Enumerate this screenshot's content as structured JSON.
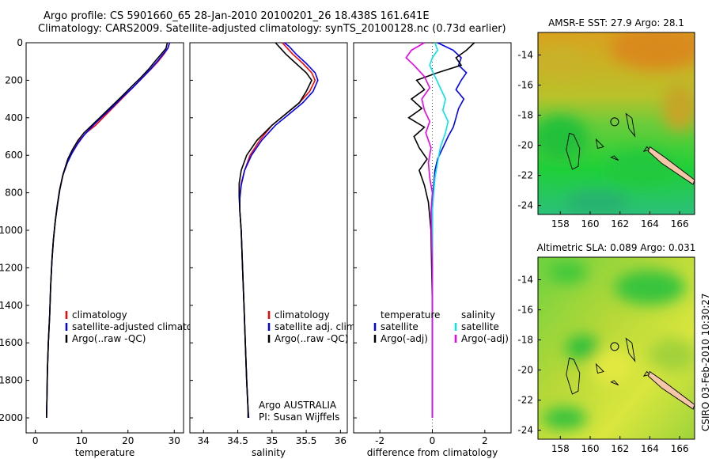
{
  "header": {
    "line1": "Argo profile: CS 5901660_65 28-Jan-2010 20100201_26 18.438S 161.641E",
    "line2": "Climatology: CARS2009. Satellite-adjusted climatology: synTS_20100128.nc (0.73d earlier)"
  },
  "credit": "CSIRO 03-Feb-2010 10:30:27",
  "colors": {
    "climatology": "#ff0000",
    "satellite": "#0000ff",
    "argo": "#000000",
    "sat_salinity": "#00e5ee",
    "argo_salinity": "#ee00ee",
    "island": "#f5c6a8"
  },
  "chart_data": [
    {
      "type": "line",
      "id": "temperature",
      "xlabel": "temperature",
      "ylabel": "",
      "xlim": [
        -2,
        32
      ],
      "ylim": [
        0,
        2080
      ],
      "xticks": [
        "0",
        "10",
        "20",
        "30"
      ],
      "yticks": [
        "0",
        "200",
        "400",
        "600",
        "800",
        "1000",
        "1200",
        "1400",
        "1600",
        "1800",
        "2000"
      ],
      "legend": [
        "climatology",
        "satellite-adjusted climatology",
        "Argo(..raw -QC)"
      ],
      "series": [
        {
          "name": "climatology",
          "color": "#ff0000",
          "x": [
            29.0,
            28.6,
            27.8,
            26.5,
            25.0,
            23.0,
            21.0,
            19.0,
            17.0,
            15.0,
            13.0,
            11.0,
            9.5,
            8.3,
            7.2,
            6.0,
            5.3,
            4.8,
            4.3,
            3.9,
            3.6,
            3.3,
            3.1,
            2.8,
            2.6,
            2.5,
            2.4
          ],
          "y": [
            0,
            30,
            60,
            100,
            140,
            190,
            240,
            290,
            340,
            390,
            440,
            480,
            520,
            570,
            620,
            700,
            780,
            860,
            950,
            1050,
            1150,
            1300,
            1450,
            1600,
            1750,
            1900,
            2000
          ]
        },
        {
          "name": "satellite-adjusted climatology",
          "color": "#0000ff",
          "x": [
            29.0,
            28.6,
            27.6,
            26.3,
            24.9,
            23.0,
            21.0,
            18.8,
            16.8,
            14.6,
            12.5,
            10.6,
            9.1,
            7.9,
            6.9,
            5.9,
            5.2,
            4.7,
            4.3,
            3.9,
            3.6,
            3.3,
            3.1,
            2.8,
            2.6,
            2.5,
            2.4
          ],
          "y": [
            0,
            30,
            60,
            100,
            140,
            190,
            240,
            290,
            340,
            390,
            440,
            490,
            540,
            590,
            640,
            710,
            790,
            870,
            950,
            1050,
            1150,
            1300,
            1450,
            1600,
            1750,
            1900,
            2000
          ]
        },
        {
          "name": "Argo(..raw -QC)",
          "color": "#000000",
          "x": [
            28.5,
            28.2,
            27.2,
            25.8,
            24.5,
            22.6,
            20.5,
            18.5,
            16.4,
            14.3,
            12.2,
            10.5,
            9.2,
            8.0,
            7.0,
            6.0,
            5.3,
            4.8,
            4.3,
            3.9,
            3.6,
            3.3,
            3.1,
            2.8,
            2.6,
            2.5,
            2.4
          ],
          "y": [
            0,
            30,
            60,
            100,
            140,
            190,
            240,
            290,
            340,
            390,
            440,
            480,
            520,
            570,
            620,
            700,
            780,
            860,
            950,
            1050,
            1150,
            1300,
            1450,
            1600,
            1750,
            1900,
            2000
          ]
        }
      ]
    },
    {
      "type": "line",
      "id": "salinity",
      "xlabel": "salinity",
      "ylabel": "",
      "xlim": [
        33.8,
        36.1
      ],
      "ylim": [
        0,
        2080
      ],
      "xticks": [
        "34",
        "34.5",
        "35",
        "35.5",
        "36"
      ],
      "yticks": [],
      "legend": [
        "climatology",
        "satellite adj. clim.",
        "Argo(..raw -QC)"
      ],
      "annotation": [
        "Argo AUSTRALIA",
        "PI: Susan Wijffels"
      ],
      "series": [
        {
          "name": "climatology",
          "color": "#ff0000",
          "x": [
            35.15,
            35.2,
            35.3,
            35.45,
            35.58,
            35.63,
            35.55,
            35.4,
            35.2,
            35.0,
            34.82,
            34.68,
            34.6,
            34.55,
            34.53,
            34.53,
            34.55,
            34.57,
            34.59,
            34.61,
            34.63,
            34.65,
            34.66
          ],
          "y": [
            0,
            20,
            60,
            110,
            160,
            200,
            260,
            320,
            380,
            440,
            520,
            600,
            680,
            750,
            820,
            900,
            1000,
            1200,
            1400,
            1600,
            1800,
            1950,
            2000
          ]
        },
        {
          "name": "satellite adj. clim.",
          "color": "#0000ff",
          "x": [
            35.18,
            35.25,
            35.35,
            35.5,
            35.63,
            35.67,
            35.6,
            35.45,
            35.25,
            35.05,
            34.85,
            34.7,
            34.6,
            34.55,
            34.53,
            34.53,
            34.55,
            34.57,
            34.59,
            34.61,
            34.63,
            34.65,
            34.66
          ],
          "y": [
            0,
            20,
            60,
            110,
            160,
            200,
            260,
            320,
            380,
            440,
            520,
            600,
            680,
            760,
            830,
            900,
            1000,
            1200,
            1400,
            1600,
            1800,
            1950,
            2000
          ]
        },
        {
          "name": "Argo(..raw -QC)",
          "color": "#000000",
          "x": [
            35.05,
            35.1,
            35.2,
            35.35,
            35.5,
            35.58,
            35.5,
            35.4,
            35.2,
            35.0,
            34.78,
            34.63,
            34.55,
            34.52,
            34.52,
            34.53,
            34.55,
            34.57,
            34.59,
            34.61,
            34.63,
            34.65,
            34.65
          ],
          "y": [
            0,
            20,
            60,
            110,
            160,
            200,
            260,
            320,
            380,
            440,
            520,
            600,
            680,
            750,
            820,
            900,
            1000,
            1200,
            1400,
            1600,
            1800,
            1950,
            2000
          ]
        }
      ]
    },
    {
      "type": "line",
      "id": "difference",
      "xlabel": "difference from climatology",
      "ylabel": "",
      "xlim": [
        -3,
        3
      ],
      "ylim": [
        0,
        2080
      ],
      "xticks": [
        "-2",
        "0",
        "2"
      ],
      "yticks": [],
      "legend_temperature": [
        "temperature",
        "satellite",
        "Argo(-adj)"
      ],
      "legend_salinity": [
        "salinity",
        "satellite",
        "Argo(-adj)"
      ],
      "series": [
        {
          "name": "temperature satellite",
          "color": "#0000ff",
          "x": [
            0.2,
            0.8,
            1.1,
            1.0,
            1.3,
            1.1,
            0.9,
            1.2,
            1.0,
            0.9,
            0.8,
            0.6,
            0.4,
            0.2,
            0.1,
            0.05,
            0,
            0,
            0,
            0,
            0
          ],
          "y": [
            0,
            40,
            80,
            120,
            160,
            200,
            250,
            300,
            350,
            400,
            450,
            500,
            560,
            620,
            680,
            760,
            850,
            1000,
            1400,
            1800,
            2000
          ]
        },
        {
          "name": "temperature Argo(-adj)",
          "color": "#000000",
          "x": [
            1.6,
            1.3,
            0.9,
            1.1,
            0.2,
            -0.6,
            -0.3,
            -0.8,
            -0.4,
            -0.9,
            -0.3,
            -0.7,
            -0.5,
            -0.2,
            -0.5,
            -0.3,
            -0.15,
            -0.05,
            0,
            0,
            0
          ],
          "y": [
            0,
            40,
            80,
            120,
            160,
            200,
            250,
            300,
            350,
            400,
            450,
            500,
            560,
            620,
            680,
            760,
            850,
            1000,
            1400,
            1800,
            2000
          ]
        },
        {
          "name": "salinity satellite",
          "color": "#00e5ee",
          "x": [
            0.1,
            0.2,
            0,
            -0.1,
            0.1,
            0.3,
            0.5,
            0.4,
            0.6,
            0.5,
            0.3,
            0.2,
            0.1,
            0.05,
            0,
            0,
            0
          ],
          "y": [
            0,
            40,
            80,
            120,
            180,
            240,
            300,
            360,
            420,
            480,
            560,
            640,
            720,
            800,
            900,
            1200,
            2000
          ]
        },
        {
          "name": "salinity Argo(-adj)",
          "color": "#ee00ee",
          "x": [
            -0.3,
            -0.8,
            -1.0,
            -0.7,
            -0.3,
            -0.1,
            -0.4,
            -0.3,
            -0.1,
            -0.25,
            -0.05,
            -0.15,
            -0.1,
            0,
            -0.05,
            0,
            0
          ],
          "y": [
            0,
            40,
            80,
            120,
            180,
            240,
            300,
            360,
            420,
            480,
            560,
            640,
            720,
            800,
            900,
            1200,
            2000
          ]
        }
      ]
    },
    {
      "type": "heatmap",
      "id": "sst-map",
      "title": "AMSR-E SST: 27.9 Argo: 28.1",
      "xticks": [
        "158",
        "160",
        "162",
        "164",
        "166"
      ],
      "yticks": [
        "-14",
        "-16",
        "-18",
        "-20",
        "-22",
        "-24"
      ],
      "xlim": [
        156.5,
        167
      ],
      "ylim": [
        -24.6,
        -12.5
      ],
      "argo_position": [
        161.64,
        -18.44
      ]
    },
    {
      "type": "heatmap",
      "id": "sla-map",
      "title": "Altimetric SLA: 0.089 Argo: 0.031",
      "xticks": [
        "158",
        "160",
        "162",
        "164",
        "166"
      ],
      "yticks": [
        "-14",
        "-16",
        "-18",
        "-20",
        "-22",
        "-24"
      ],
      "xlim": [
        156.5,
        167
      ],
      "ylim": [
        -24.6,
        -12.5
      ],
      "argo_position": [
        161.64,
        -18.44
      ]
    }
  ]
}
